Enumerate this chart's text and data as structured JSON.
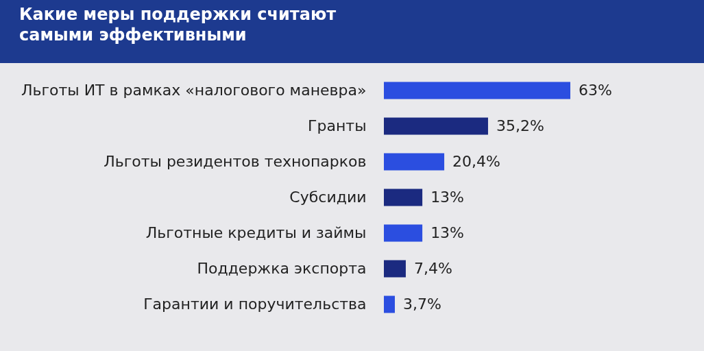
{
  "chart_data": {
    "type": "bar",
    "orientation": "horizontal",
    "title": "Какие меры поддержки считают самыми эффективными",
    "categories": [
      "Льготы ИТ в рамках «налогового маневра»",
      "Гранты",
      "Льготы резидентов технопарков",
      "Субсидии",
      "Льготные кредиты и займы",
      "Поддержка экспорта",
      "Гарантии и поручительства"
    ],
    "values": [
      63,
      35.2,
      20.4,
      13,
      13,
      7.4,
      3.7
    ],
    "value_labels": [
      "63%",
      "35,2%",
      "20,4%",
      "13%",
      "13%",
      "7,4%",
      "3,7%"
    ],
    "colors": [
      "#2b4ee0",
      "#1b2a80",
      "#2b4ee0",
      "#1b2a80",
      "#2b4ee0",
      "#1b2a80",
      "#2b4ee0"
    ],
    "tick_labels": "y"
  }
}
